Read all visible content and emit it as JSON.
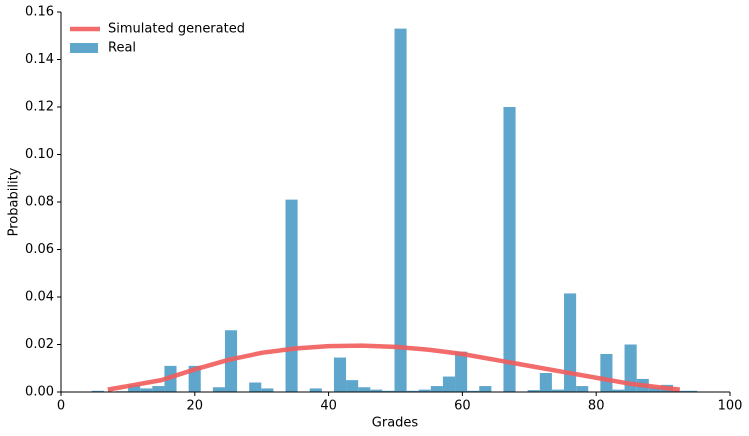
{
  "chart_data": {
    "type": "histogram",
    "xlabel": "Grades",
    "ylabel": "Probability",
    "xlim": [
      0,
      100
    ],
    "xticks": [
      0,
      20,
      40,
      60,
      80,
      100
    ],
    "ylim": [
      0,
      0.16
    ],
    "yticks": [
      {
        "value": 0,
        "label": "0.00"
      },
      {
        "value": 0.02,
        "label": "0.02"
      },
      {
        "value": 0.04,
        "label": "0.04"
      },
      {
        "value": 0.06,
        "label": "0.06"
      },
      {
        "value": 0.08,
        "label": "0.08"
      },
      {
        "value": 0.1,
        "label": "0.10"
      },
      {
        "value": 0.12,
        "label": "0.12"
      },
      {
        "value": 0.14,
        "label": "0.14"
      },
      {
        "value": 0.16,
        "label": "0.16"
      }
    ],
    "grid": false,
    "legend": "upper left",
    "series": [
      {
        "name": "Simulated generated",
        "type": "line",
        "color": "#f25c5c",
        "x": [
          7,
          10,
          15,
          20,
          25,
          30,
          35,
          40,
          45,
          50,
          55,
          60,
          65,
          70,
          75,
          80,
          85,
          90,
          92.5
        ],
        "values": [
          0.001,
          0.0025,
          0.005,
          0.0095,
          0.0135,
          0.0165,
          0.0183,
          0.0193,
          0.0195,
          0.019,
          0.0178,
          0.016,
          0.0135,
          0.011,
          0.0085,
          0.006,
          0.0035,
          0.0018,
          0.001
        ]
      },
      {
        "name": "Real",
        "type": "histogram",
        "color": "#5ea6cc",
        "bins": [
          4.6,
          6.41,
          8.22,
          10.03,
          11.84,
          13.65,
          15.46,
          17.27,
          19.08,
          20.89,
          22.7,
          24.51,
          26.32,
          28.13,
          29.94,
          31.75,
          33.56,
          35.37,
          37.18,
          38.99,
          40.8,
          42.61,
          44.42,
          46.23,
          48.04,
          49.85,
          51.66,
          53.47,
          55.28,
          57.09,
          58.9,
          60.71,
          62.52,
          64.33,
          66.14,
          67.95,
          69.76,
          71.57,
          73.38,
          75.19,
          77.0,
          78.81,
          80.62,
          82.43,
          84.24,
          86.05,
          87.86,
          89.67,
          91.48,
          93.29,
          95.1
        ],
        "values": [
          0.0005,
          0,
          0.0003,
          0.003,
          0.0015,
          0.0025,
          0.011,
          0,
          0.011,
          0,
          0.002,
          0.026,
          0,
          0.004,
          0.0015,
          0,
          0.081,
          0,
          0.0015,
          0,
          0.0145,
          0.005,
          0.002,
          0.001,
          0.0005,
          0.153,
          0.0005,
          0.001,
          0.0025,
          0.0065,
          0.017,
          0.0005,
          0.0025,
          0,
          0.12,
          0,
          0.0008,
          0.008,
          0.001,
          0.0415,
          0.0025,
          0,
          0.016,
          0.001,
          0.02,
          0.0055,
          0.002,
          0.003,
          0.0005,
          0.0005
        ]
      }
    ]
  }
}
